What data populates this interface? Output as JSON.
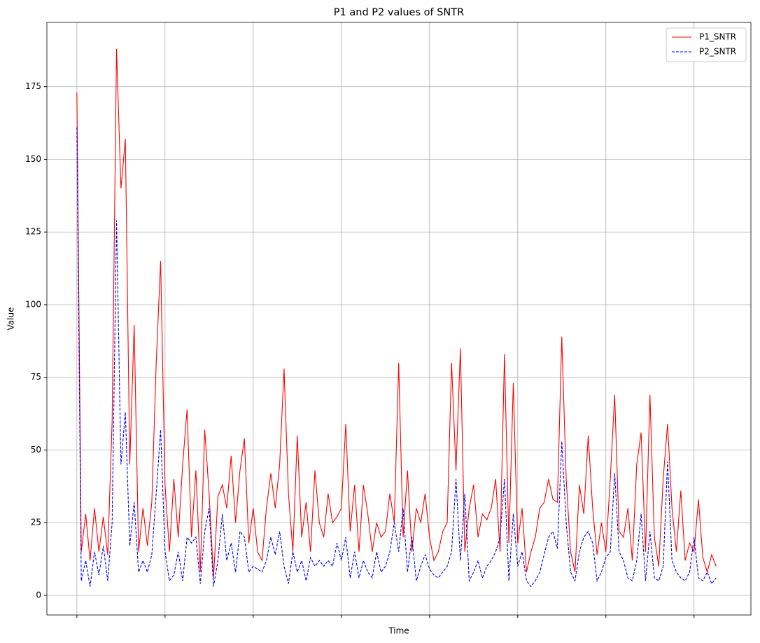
{
  "chart_data": {
    "type": "line",
    "title": "P1 and P2 values of SNTR",
    "x_label": "Time",
    "y_label": "Value",
    "x": [
      0,
      1,
      2,
      3,
      4,
      5,
      6,
      7,
      8,
      9,
      10,
      11,
      12,
      13,
      14,
      15,
      16,
      17,
      18,
      19,
      20,
      21,
      22,
      23,
      24,
      25,
      26,
      27,
      28,
      29,
      30,
      31,
      32,
      33,
      34,
      35,
      36,
      37,
      38,
      39,
      40,
      41,
      42,
      43,
      44,
      45,
      46,
      47,
      48,
      49,
      50,
      51,
      52,
      53,
      54,
      55,
      56,
      57,
      58,
      59,
      60,
      61,
      62,
      63,
      64,
      65,
      66,
      67,
      68,
      69,
      70,
      71,
      72,
      73,
      74,
      75,
      76,
      77,
      78,
      79,
      80,
      81,
      82,
      83,
      84,
      85,
      86,
      87,
      88,
      89,
      90,
      91,
      92,
      93,
      94,
      95,
      96,
      97,
      98,
      99,
      100,
      101,
      102,
      103,
      104,
      105,
      106,
      107,
      108,
      109,
      110,
      111,
      112,
      113,
      114,
      115,
      116,
      117,
      118,
      119,
      120,
      121,
      122,
      123,
      124,
      125,
      126,
      127,
      128,
      129,
      130,
      131,
      132,
      133,
      134,
      135,
      136,
      137,
      138,
      139,
      140,
      141,
      142,
      143,
      144,
      145
    ],
    "series": [
      {
        "name": "P1_SNTR",
        "color": "#ff0000",
        "style": "solid",
        "values": [
          173,
          15,
          28,
          12,
          30,
          15,
          27,
          14,
          60,
          188,
          140,
          157,
          45,
          93,
          15,
          30,
          17,
          32,
          80,
          115,
          38,
          15,
          40,
          20,
          45,
          64,
          20,
          43,
          8,
          57,
          35,
          6,
          34,
          38,
          30,
          48,
          25,
          43,
          54,
          18,
          30,
          15,
          12,
          30,
          42,
          30,
          45,
          78,
          35,
          15,
          55,
          20,
          32,
          15,
          43,
          25,
          20,
          35,
          25,
          27,
          30,
          59,
          22,
          38,
          15,
          38,
          28,
          15,
          25,
          20,
          22,
          35,
          25,
          80,
          20,
          43,
          15,
          30,
          25,
          35,
          20,
          12,
          15,
          22,
          25,
          80,
          43,
          85,
          15,
          30,
          38,
          20,
          28,
          26,
          30,
          40,
          15,
          83,
          18,
          73,
          18,
          30,
          8,
          15,
          20,
          30,
          32,
          40,
          33,
          32,
          89,
          40,
          15,
          8,
          38,
          28,
          55,
          30,
          14,
          25,
          15,
          40,
          69,
          22,
          20,
          30,
          12,
          45,
          56,
          15,
          69,
          20,
          10,
          40,
          59,
          30,
          15,
          36,
          12,
          18,
          15,
          33,
          13,
          8,
          14,
          10
        ]
      },
      {
        "name": "P2_SNTR",
        "color": "#0000ff",
        "style": "dashed",
        "values": [
          161,
          5,
          12,
          3,
          15,
          7,
          17,
          5,
          25,
          129,
          45,
          63,
          17,
          32,
          8,
          12,
          8,
          14,
          35,
          57,
          15,
          5,
          7,
          15,
          5,
          20,
          18,
          20,
          4,
          22,
          30,
          3,
          12,
          28,
          12,
          18,
          8,
          22,
          20,
          8,
          10,
          9,
          8,
          12,
          20,
          14,
          22,
          10,
          4,
          15,
          8,
          12,
          5,
          13,
          10,
          12,
          10,
          12,
          10,
          18,
          12,
          20,
          6,
          15,
          6,
          12,
          8,
          6,
          15,
          8,
          10,
          15,
          25,
          15,
          30,
          8,
          20,
          5,
          10,
          14,
          9,
          7,
          6,
          8,
          10,
          15,
          40,
          12,
          35,
          5,
          8,
          12,
          6,
          10,
          12,
          15,
          20,
          40,
          5,
          28,
          10,
          15,
          5,
          3,
          5,
          8,
          14,
          20,
          22,
          16,
          53,
          25,
          8,
          5,
          15,
          20,
          22,
          18,
          5,
          8,
          13,
          15,
          42,
          15,
          12,
          6,
          5,
          12,
          28,
          5,
          22,
          6,
          5,
          10,
          46,
          12,
          8,
          6,
          5,
          8,
          20,
          6,
          5,
          8,
          4,
          6
        ]
      }
    ],
    "xlim": [
      -6.8,
      152.9
    ],
    "xticks": [
      0,
      20,
      40,
      60,
      80,
      100,
      120,
      140
    ],
    "ylim": [
      -6.75,
      197.1
    ],
    "yticks": [
      0,
      25,
      50,
      75,
      100,
      125,
      150,
      175
    ],
    "grid": true,
    "legend": "upper right"
  }
}
